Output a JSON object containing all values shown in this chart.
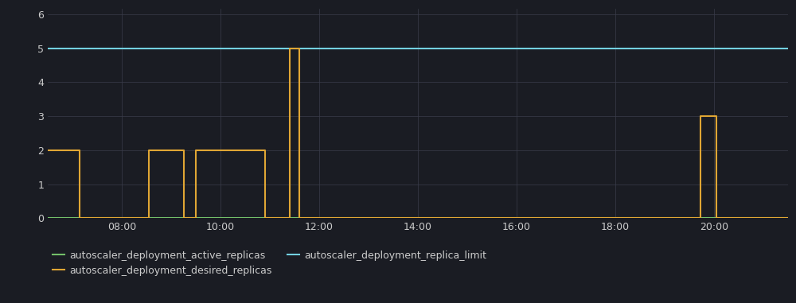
{
  "background_color": "#1a1c23",
  "grid_color": "#3a3d4a",
  "text_color": "#cccccc",
  "ylim": [
    0,
    6.15
  ],
  "yticks": [
    0,
    1,
    2,
    3,
    4,
    5,
    6
  ],
  "xlim_hours": [
    6.5,
    21.5
  ],
  "xtick_hours": [
    8,
    10,
    12,
    14,
    16,
    18,
    20
  ],
  "desired_replicas_times": [
    6.5,
    7.15,
    7.15,
    8.55,
    8.55,
    9.25,
    9.25,
    9.5,
    9.5,
    10.9,
    10.9,
    11.4,
    11.4,
    11.6,
    11.6,
    11.8,
    11.8,
    19.72,
    19.72,
    20.05,
    20.05,
    21.5
  ],
  "desired_replicas_values": [
    2,
    2,
    0,
    0,
    2,
    2,
    0,
    0,
    2,
    2,
    0,
    0,
    5,
    5,
    0,
    0,
    0,
    0,
    3,
    3,
    0,
    0
  ],
  "replica_limit_value": 5,
  "active_replicas_color": "#73bf69",
  "desired_replicas_color": "#e0a634",
  "replica_limit_color": "#73d0e0",
  "active_replicas_label": "autoscaler_deployment_active_replicas",
  "desired_replicas_label": "autoscaler_deployment_desired_replicas",
  "replica_limit_label": "autoscaler_deployment_replica_limit",
  "line_width": 1.5,
  "figsize": [
    10.0,
    3.81
  ],
  "dpi": 100
}
